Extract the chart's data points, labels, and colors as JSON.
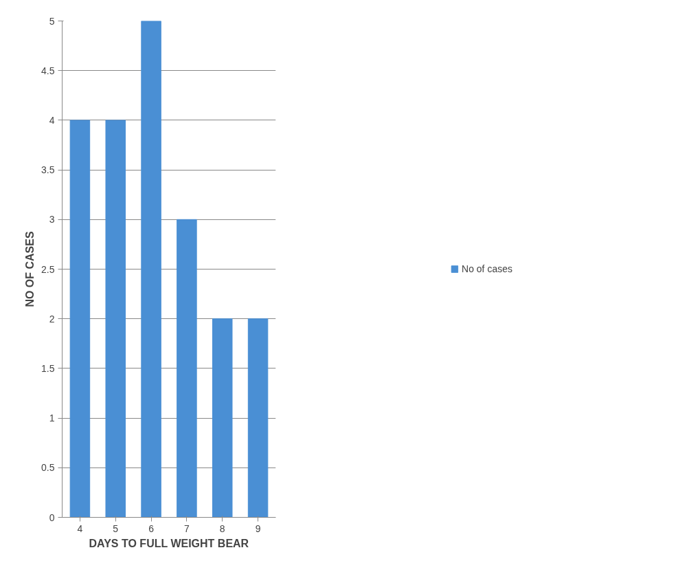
{
  "chart_data": {
    "type": "bar",
    "xlabel": "DAYS TO FULL WEIGHT BEAR",
    "ylabel": "NO OF CASES",
    "categories": [
      "4",
      "5",
      "6",
      "7",
      "8",
      "9"
    ],
    "series": [
      {
        "name": "No of cases",
        "color": "#4a8fd4",
        "values": [
          4,
          4,
          5,
          3,
          2,
          2
        ]
      }
    ],
    "ylim": [
      0,
      5
    ],
    "yticks": [
      0,
      0.5,
      1,
      1.5,
      2,
      2.5,
      3,
      3.5,
      4,
      4.5,
      5
    ],
    "grid": "y",
    "legend": "right"
  }
}
